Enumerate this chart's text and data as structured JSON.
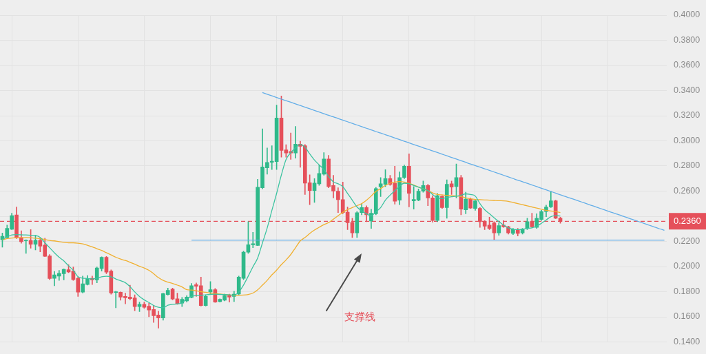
{
  "chart_data": {
    "type": "candlestick",
    "categories": [
      null,
      null,
      null,
      null,
      null,
      null,
      null,
      null,
      null,
      null,
      null,
      null,
      null,
      null,
      null,
      null,
      null,
      null,
      null,
      null,
      null,
      null,
      null,
      null,
      null,
      null,
      null,
      null,
      null,
      null,
      null,
      null,
      null,
      null,
      null,
      null,
      null,
      null,
      null,
      null,
      null,
      null,
      null,
      null,
      null,
      null,
      null,
      null,
      null,
      null,
      null,
      null,
      null,
      null,
      null,
      null,
      null,
      null,
      null,
      null,
      null,
      null,
      null,
      null,
      null,
      null,
      null,
      null,
      null,
      null,
      null,
      null,
      null,
      null,
      null,
      null,
      null,
      null,
      null,
      null,
      null,
      null,
      null,
      null,
      null,
      null,
      null,
      null,
      null,
      null,
      null,
      null,
      null,
      null,
      null,
      null,
      null,
      null,
      null,
      null,
      null,
      null,
      null,
      null,
      null,
      null,
      null,
      null,
      null,
      null,
      null,
      null,
      null,
      null,
      null,
      null,
      null,
      null,
      null,
      null,
      null,
      null,
      null,
      null,
      null,
      null,
      null,
      null,
      null,
      null,
      null,
      null,
      null,
      null,
      null,
      null,
      null,
      null,
      null,
      null,
      null
    ],
    "ohlc": [
      [
        0.2213,
        0.2267,
        0.2154,
        0.224
      ],
      [
        0.2231,
        0.233,
        0.2222,
        0.2303
      ],
      [
        0.2297,
        0.2424,
        0.2294,
        0.2405
      ],
      [
        0.2411,
        0.2474,
        0.2222,
        0.2231
      ],
      [
        0.2231,
        0.2285,
        0.2186,
        0.2198
      ],
      [
        0.2204,
        0.2213,
        0.2105,
        0.2209
      ],
      [
        0.2208,
        0.2294,
        0.2146,
        0.2177
      ],
      [
        0.2177,
        0.2249,
        0.2132,
        0.2209
      ],
      [
        0.2209,
        0.2225,
        0.2117,
        0.2162
      ],
      [
        0.2171,
        0.2225,
        0.2078,
        0.2081
      ],
      [
        0.2085,
        0.2096,
        0.1897,
        0.1905
      ],
      [
        0.1906,
        0.1961,
        0.1847,
        0.1934
      ],
      [
        0.1924,
        0.197,
        0.1889,
        0.1946
      ],
      [
        0.1943,
        0.1982,
        0.1894,
        0.1978
      ],
      [
        0.1975,
        0.2015,
        0.1951,
        0.1957
      ],
      [
        0.1964,
        0.1997,
        0.1889,
        0.1897
      ],
      [
        0.1906,
        0.1916,
        0.1762,
        0.1797
      ],
      [
        0.1797,
        0.1924,
        0.1789,
        0.1862
      ],
      [
        0.1856,
        0.1928,
        0.1852,
        0.1903
      ],
      [
        0.1906,
        0.1924,
        0.1856,
        0.1894
      ],
      [
        0.1894,
        0.1997,
        0.187,
        0.1988
      ],
      [
        0.1984,
        0.2078,
        0.1964,
        0.2074
      ],
      [
        0.2074,
        0.2081,
        0.1943,
        0.1955
      ],
      [
        0.1964,
        0.1973,
        0.178,
        0.1789
      ],
      [
        0.1793,
        0.1804,
        0.1672,
        0.18
      ],
      [
        0.1795,
        0.1798,
        0.1732,
        0.1757
      ],
      [
        0.1762,
        0.1789,
        0.1703,
        0.1751
      ],
      [
        0.1757,
        0.1852,
        0.1735,
        0.1744
      ],
      [
        0.175,
        0.1775,
        0.1649,
        0.1681
      ],
      [
        0.1681,
        0.1717,
        0.1642,
        0.1699
      ],
      [
        0.1699,
        0.1717,
        0.1667,
        0.1676
      ],
      [
        0.1685,
        0.1708,
        0.16,
        0.1654
      ],
      [
        0.1658,
        0.169,
        0.1555,
        0.1609
      ],
      [
        0.1615,
        0.1645,
        0.151,
        0.1591
      ],
      [
        0.1591,
        0.1789,
        0.1573,
        0.1784
      ],
      [
        0.1777,
        0.1829,
        0.1771,
        0.1811
      ],
      [
        0.182,
        0.1829,
        0.1735,
        0.1741
      ],
      [
        0.1744,
        0.1789,
        0.1699,
        0.1705
      ],
      [
        0.1708,
        0.1754,
        0.1681,
        0.1739
      ],
      [
        0.1726,
        0.1768,
        0.1717,
        0.1757
      ],
      [
        0.1754,
        0.1865,
        0.175,
        0.1847
      ],
      [
        0.1856,
        0.187,
        0.1762,
        0.1843
      ],
      [
        0.1847,
        0.1916,
        0.1685,
        0.169
      ],
      [
        0.169,
        0.1775,
        0.1685,
        0.1762
      ],
      [
        0.1798,
        0.188,
        0.1782,
        0.1816
      ],
      [
        0.1816,
        0.1825,
        0.1714,
        0.1717
      ],
      [
        0.1721,
        0.1744,
        0.1717,
        0.1739
      ],
      [
        0.1732,
        0.1781,
        0.1726,
        0.1771
      ],
      [
        0.1771,
        0.1781,
        0.1717,
        0.1757
      ],
      [
        0.1762,
        0.1804,
        0.1721,
        0.1781
      ],
      [
        0.1781,
        0.1924,
        0.1771,
        0.1916
      ],
      [
        0.1906,
        0.2123,
        0.1897,
        0.2114
      ],
      [
        0.2114,
        0.2357,
        0.2105,
        0.2173
      ],
      [
        0.2173,
        0.2272,
        0.215,
        0.2182
      ],
      [
        0.2168,
        0.2694,
        0.2166,
        0.2631
      ],
      [
        0.2627,
        0.3096,
        0.2618,
        0.2793
      ],
      [
        0.2786,
        0.2943,
        0.2735,
        0.2829
      ],
      [
        0.2829,
        0.2961,
        0.2771,
        0.2838
      ],
      [
        0.2835,
        0.3285,
        0.2771,
        0.3182
      ],
      [
        0.3182,
        0.3357,
        0.287,
        0.2924
      ],
      [
        0.2928,
        0.297,
        0.287,
        0.2903
      ],
      [
        0.2916,
        0.3063,
        0.2852,
        0.2903
      ],
      [
        0.2903,
        0.3114,
        0.2862,
        0.2973
      ],
      [
        0.2973,
        0.2997,
        0.2789,
        0.2957
      ],
      [
        0.2961,
        0.2971,
        0.2573,
        0.2664
      ],
      [
        0.2667,
        0.273,
        0.2492,
        0.2605
      ],
      [
        0.2605,
        0.2699,
        0.251,
        0.2664
      ],
      [
        0.2658,
        0.2808,
        0.2645,
        0.2741
      ],
      [
        0.2735,
        0.2906,
        0.2726,
        0.2856
      ],
      [
        0.2856,
        0.2884,
        0.2627,
        0.2636
      ],
      [
        0.2645,
        0.2726,
        0.2546,
        0.26
      ],
      [
        0.26,
        0.2627,
        0.2429,
        0.2532
      ],
      [
        0.2532,
        0.2672,
        0.242,
        0.2429
      ],
      [
        0.2432,
        0.2474,
        0.2294,
        0.2348
      ],
      [
        0.2351,
        0.2384,
        0.2231,
        0.2267
      ],
      [
        0.2267,
        0.2438,
        0.2231,
        0.2429
      ],
      [
        0.2429,
        0.2501,
        0.2411,
        0.247
      ],
      [
        0.247,
        0.2483,
        0.2357,
        0.2411
      ],
      [
        0.2362,
        0.2456,
        0.2303,
        0.2424
      ],
      [
        0.242,
        0.263,
        0.2411,
        0.262
      ],
      [
        0.2635,
        0.2708,
        0.2556,
        0.2659
      ],
      [
        0.2654,
        0.2771,
        0.2636,
        0.2699
      ],
      [
        0.2699,
        0.2726,
        0.2645,
        0.2654
      ],
      [
        0.2663,
        0.2798,
        0.2497,
        0.2519
      ],
      [
        0.2528,
        0.2753,
        0.2492,
        0.2708
      ],
      [
        0.2708,
        0.2808,
        0.2699,
        0.2798
      ],
      [
        0.2798,
        0.2897,
        0.2474,
        0.2582
      ],
      [
        0.2523,
        0.2636,
        0.2456,
        0.2534
      ],
      [
        0.2528,
        0.2618,
        0.2523,
        0.26
      ],
      [
        0.26,
        0.2681,
        0.2591,
        0.2645
      ],
      [
        0.2645,
        0.2654,
        0.2484,
        0.2546
      ],
      [
        0.2546,
        0.2564,
        0.2353,
        0.2366
      ],
      [
        0.2366,
        0.2582,
        0.2357,
        0.2564
      ],
      [
        0.2559,
        0.2564,
        0.2462,
        0.2469
      ],
      [
        0.2469,
        0.269,
        0.2384,
        0.2654
      ],
      [
        0.2659,
        0.2681,
        0.2573,
        0.2632
      ],
      [
        0.2636,
        0.2816,
        0.2546,
        0.2708
      ],
      [
        0.2708,
        0.2726,
        0.2411,
        0.2456
      ],
      [
        0.2451,
        0.2591,
        0.242,
        0.2537
      ],
      [
        0.2537,
        0.2546,
        0.2462,
        0.2465
      ],
      [
        0.2462,
        0.2528,
        0.2447,
        0.2523
      ],
      [
        0.2462,
        0.2469,
        0.2312,
        0.2357
      ],
      [
        0.236,
        0.2366,
        0.2294,
        0.2321
      ],
      [
        0.233,
        0.2393,
        0.2294,
        0.2303
      ],
      [
        0.2348,
        0.2357,
        0.2213,
        0.2267
      ],
      [
        0.2267,
        0.2348,
        0.2249,
        0.2326
      ],
      [
        0.233,
        0.2366,
        0.2312,
        0.2316
      ],
      [
        0.2317,
        0.2321,
        0.2258,
        0.2267
      ],
      [
        0.2263,
        0.2303,
        0.2254,
        0.2294
      ],
      [
        0.2294,
        0.2303,
        0.2243,
        0.2263
      ],
      [
        0.2267,
        0.2303,
        0.2258,
        0.2299
      ],
      [
        0.2303,
        0.2384,
        0.2294,
        0.2357
      ],
      [
        0.2357,
        0.2424,
        0.2312,
        0.2316
      ],
      [
        0.2312,
        0.242,
        0.2303,
        0.2384
      ],
      [
        0.2375,
        0.2447,
        0.2366,
        0.2438
      ],
      [
        0.2438,
        0.2489,
        0.2397,
        0.2474
      ],
      [
        0.2474,
        0.26,
        0.2469,
        0.2523
      ],
      [
        0.2523,
        0.2528,
        0.2381,
        0.2384
      ],
      [
        0.2384,
        0.2393,
        0.2344,
        0.236
      ],
      null,
      null,
      null,
      null,
      null,
      null,
      null,
      null,
      null,
      null,
      null,
      null,
      null,
      null,
      null,
      null,
      null,
      null,
      null,
      null,
      null,
      null
    ],
    "colors": [
      "#2fb98a",
      "#2fb98a",
      "#2fb98a",
      "#e5505a",
      "#e5505a",
      "#2fb98a",
      "#e5505a",
      "#2fb98a",
      "#e5505a",
      "#e5505a",
      "#e5505a",
      "#2fb98a",
      "#2fb98a",
      "#2fb98a",
      "#e5505a",
      "#e5505a",
      "#e5505a",
      "#2fb98a",
      "#2fb98a",
      "#e5505a",
      "#2fb98a",
      "#2fb98a",
      "#e5505a",
      "#e5505a",
      "#2fb98a",
      "#e5505a",
      "#e5505a",
      "#e5505a",
      "#e5505a",
      "#2fb98a",
      "#e5505a",
      "#e5505a",
      "#e5505a",
      "#e5505a",
      "#2fb98a",
      "#2fb98a",
      "#e5505a",
      "#e5505a",
      "#2fb98a",
      "#2fb98a",
      "#2fb98a",
      "#e5505a",
      "#e5505a",
      "#2fb98a",
      "#2fb98a",
      "#e5505a",
      "#2fb98a",
      "#2fb98a",
      "#e5505a",
      "#2fb98a",
      "#2fb98a",
      "#2fb98a",
      "#2fb98a",
      "#2fb98a",
      "#2fb98a",
      "#2fb98a",
      "#2fb98a",
      "#2fb98a",
      "#2fb98a",
      "#e5505a",
      "#e5505a",
      "#e5505a",
      "#2fb98a",
      "#e5505a",
      "#e5505a",
      "#e5505a",
      "#2fb98a",
      "#2fb98a",
      "#2fb98a",
      "#e5505a",
      "#e5505a",
      "#e5505a",
      "#e5505a",
      "#e5505a",
      "#e5505a",
      "#2fb98a",
      "#2fb98a",
      "#e5505a",
      "#2fb98a",
      "#2fb98a",
      "#2fb98a",
      "#2fb98a",
      "#e5505a",
      "#e5505a",
      "#2fb98a",
      "#2fb98a",
      "#e5505a",
      "#2fb98a",
      "#2fb98a",
      "#2fb98a",
      "#e5505a",
      "#e5505a",
      "#2fb98a",
      "#e5505a",
      "#2fb98a",
      "#e5505a",
      "#2fb98a",
      "#e5505a",
      "#2fb98a",
      "#e5505a",
      "#2fb98a",
      "#e5505a",
      "#e5505a",
      "#e5505a",
      "#e5505a",
      "#2fb98a",
      "#e5505a",
      "#e5505a",
      "#2fb98a",
      "#e5505a",
      "#2fb98a",
      "#2fb98a",
      "#e5505a",
      "#2fb98a",
      "#2fb98a",
      "#2fb98a",
      "#2fb98a",
      "#e5505a",
      "#e5505a",
      null,
      null,
      null,
      null,
      null,
      null,
      null,
      null,
      null,
      null,
      null,
      null,
      null,
      null,
      null,
      null,
      null,
      null,
      null,
      null,
      null,
      null
    ],
    "series": [
      {
        "type": "line",
        "color": "#3cc3a0",
        "values": [
          0.2216,
          0.2236,
          0.2251,
          0.2254,
          0.2252,
          0.2251,
          0.2249,
          0.2247,
          0.2231,
          0.2189,
          0.215,
          0.211,
          0.2074,
          0.2045,
          0.2006,
          0.197,
          0.1919,
          0.1908,
          0.1905,
          0.1901,
          0.1908,
          0.1919,
          0.1923,
          0.1919,
          0.1901,
          0.1887,
          0.1872,
          0.184,
          0.1798,
          0.1762,
          0.1735,
          0.1714,
          0.169,
          0.1676,
          0.1672,
          0.1692,
          0.1699,
          0.1703,
          0.171,
          0.1745,
          0.1762,
          0.1769,
          0.1771,
          0.1775,
          0.1778,
          0.178,
          0.1778,
          0.1777,
          0.1775,
          0.1771,
          0.1798,
          0.1853,
          0.1924,
          0.1999,
          0.2069,
          0.2188,
          0.2306,
          0.2447,
          0.2582,
          0.2728,
          0.2852,
          0.2906,
          0.2944,
          0.2971,
          0.295,
          0.2896,
          0.2847,
          0.2809,
          0.2771,
          0.2717,
          0.2674,
          0.2658,
          0.2636,
          0.2582,
          0.2528,
          0.2474,
          0.2442,
          0.242,
          0.2404,
          0.2436,
          0.2469,
          0.2528,
          0.2568,
          0.2604,
          0.264,
          0.2663,
          0.2658,
          0.2645,
          0.2632,
          0.2618,
          0.2604,
          0.2573,
          0.2546,
          0.2541,
          0.255,
          0.2555,
          0.2559,
          0.2568,
          0.2578,
          0.2573,
          0.2561,
          0.2501,
          0.2452,
          0.242,
          0.2388,
          0.2357,
          0.233,
          0.2308,
          0.2297,
          0.2294,
          0.2297,
          0.2303,
          0.2308,
          0.2321,
          0.2344,
          0.237,
          0.2397,
          0.2405,
          0.2402,
          null,
          null,
          null,
          null,
          null,
          null,
          null,
          null,
          null,
          null,
          null,
          null,
          null,
          null,
          null,
          null,
          null,
          null,
          null,
          null,
          null,
          null
        ]
      },
      {
        "type": "line",
        "color": "#f0b030",
        "values": [
          0.2213,
          0.2222,
          0.2227,
          0.2229,
          0.2229,
          0.2231,
          0.2229,
          0.2225,
          0.2222,
          0.2215,
          0.2207,
          0.2204,
          0.2198,
          0.2193,
          0.2189,
          0.2189,
          0.2186,
          0.218,
          0.2169,
          0.2157,
          0.2142,
          0.2128,
          0.211,
          0.2092,
          0.2074,
          0.2059,
          0.2048,
          0.2034,
          0.2018,
          0.2002,
          0.1988,
          0.197,
          0.1943,
          0.1912,
          0.189,
          0.1876,
          0.1865,
          0.1852,
          0.1838,
          0.1816,
          0.1813,
          0.1808,
          0.18,
          0.1795,
          0.1789,
          0.1786,
          0.1782,
          0.1778,
          0.1775,
          0.1771,
          0.1771,
          0.1773,
          0.1778,
          0.1789,
          0.1815,
          0.1852,
          0.189,
          0.1934,
          0.1971,
          0.2015,
          0.2053,
          0.2096,
          0.215,
          0.2204,
          0.2231,
          0.2263,
          0.229,
          0.2312,
          0.2334,
          0.235,
          0.2377,
          0.2404,
          0.2431,
          0.2453,
          0.2469,
          0.2485,
          0.2501,
          0.2528,
          0.2561,
          0.2598,
          0.262,
          0.2645,
          0.2663,
          0.2672,
          0.2676,
          0.2672,
          0.2662,
          0.2649,
          0.2632,
          0.2618,
          0.2604,
          0.2586,
          0.2573,
          0.257,
          0.2566,
          0.2564,
          0.2562,
          0.2557,
          0.2546,
          0.2539,
          0.2534,
          0.2532,
          0.253,
          0.2528,
          0.2526,
          0.2524,
          0.2523,
          0.2519,
          0.251,
          0.2501,
          0.2492,
          0.2483,
          0.2474,
          0.2465,
          0.2456,
          0.2447,
          0.2442,
          0.2438,
          0.2429,
          null,
          null,
          null,
          null,
          null,
          null,
          null,
          null,
          null,
          null,
          null,
          null,
          null,
          null,
          null,
          null,
          null,
          null,
          null,
          null,
          null,
          null
        ]
      },
      {
        "type": "line",
        "color": "#63aee8",
        "values": [
          null,
          null,
          null,
          null,
          null,
          null,
          null,
          null,
          null,
          null,
          null,
          null,
          null,
          null,
          null,
          null,
          null,
          null,
          null,
          null,
          null,
          null,
          null,
          null,
          null,
          null,
          null,
          null,
          null,
          null,
          null,
          null,
          null,
          null,
          null,
          null,
          null,
          null,
          null,
          null,
          null,
          null,
          null,
          null,
          null,
          null,
          null,
          null,
          null,
          null,
          null,
          null,
          null,
          null,
          null,
          0.3384,
          0.3371,
          0.3358,
          0.3345,
          0.3332,
          0.332,
          0.3307,
          0.3294,
          0.3281,
          0.3268,
          0.3255,
          0.3242,
          0.3229,
          0.3216,
          0.3203,
          0.3191,
          0.3178,
          0.3165,
          0.3152,
          0.3139,
          0.3126,
          0.3113,
          0.31,
          0.3087,
          0.3074,
          0.3062,
          0.3049,
          0.3036,
          0.3023,
          0.301,
          0.2997,
          0.2984,
          0.2971,
          0.2958,
          0.2945,
          0.2933,
          0.292,
          0.2907,
          0.2894,
          0.2881,
          0.2868,
          0.2855,
          0.2842,
          0.2829,
          0.2816,
          0.2804,
          0.2791,
          0.2778,
          0.2765,
          0.2752,
          0.2739,
          0.2726,
          0.2713,
          0.27,
          0.2687,
          0.2675,
          0.2662,
          0.2649,
          0.2636,
          0.2623,
          0.261,
          0.2597,
          0.2584,
          0.2571,
          0.2558,
          0.2546,
          0.2533,
          0.252,
          0.2507,
          0.2494,
          0.2481,
          0.2468,
          0.2455,
          0.2442,
          0.2429,
          0.2417,
          0.2404,
          0.2391,
          0.2378,
          0.2365,
          0.2352,
          0.2339,
          0.2326,
          0.2313,
          0.23,
          0.2288
        ]
      },
      {
        "type": "line",
        "color": "#63aee8",
        "values": [
          null,
          null,
          null,
          null,
          null,
          null,
          null,
          null,
          null,
          null,
          null,
          null,
          null,
          null,
          null,
          null,
          null,
          null,
          null,
          null,
          null,
          null,
          null,
          null,
          null,
          null,
          null,
          null,
          null,
          null,
          null,
          null,
          null,
          null,
          null,
          null,
          null,
          null,
          null,
          null,
          0.221,
          0.221,
          0.221,
          0.221,
          0.221,
          0.221,
          0.221,
          0.221,
          0.221,
          0.221,
          0.221,
          0.221,
          0.221,
          0.221,
          0.221,
          0.221,
          0.221,
          0.221,
          0.221,
          0.221,
          0.221,
          0.221,
          0.221,
          0.221,
          0.221,
          0.221,
          0.221,
          0.221,
          0.221,
          0.221,
          0.221,
          0.221,
          0.221,
          0.221,
          0.221,
          0.221,
          0.221,
          0.221,
          0.221,
          0.221,
          0.221,
          0.221,
          0.221,
          0.221,
          0.221,
          0.221,
          0.221,
          0.221,
          0.221,
          0.221,
          0.221,
          0.221,
          0.221,
          0.221,
          0.221,
          0.221,
          0.221,
          0.221,
          0.221,
          0.221,
          0.221,
          0.221,
          0.221,
          0.221,
          0.221,
          0.221,
          0.221,
          0.221,
          0.221,
          0.221,
          0.221,
          0.221,
          0.221,
          0.221,
          0.221,
          0.221,
          0.221,
          0.221,
          0.221,
          0.221,
          0.221,
          0.221,
          0.221,
          0.221,
          0.221,
          0.221,
          0.221,
          0.221,
          0.221,
          0.221,
          0.221,
          0.221,
          0.221,
          0.221,
          0.221,
          0.221,
          0.221,
          0.221,
          0.221,
          0.221,
          0.221
        ]
      }
    ],
    "ylim": [
      0.14,
      0.4
    ],
    "yticks": [
      {
        "value": 0.14,
        "label": "0.1400"
      },
      {
        "value": 0.16,
        "label": "0.1600"
      },
      {
        "value": 0.18,
        "label": "0.1800"
      },
      {
        "value": 0.2,
        "label": "0.2000"
      },
      {
        "value": 0.22,
        "label": "0.2200"
      },
      {
        "value": 0.24,
        "label": null
      },
      {
        "value": 0.26,
        "label": "0.2600"
      },
      {
        "value": 0.28,
        "label": "0.2800"
      },
      {
        "value": 0.3,
        "label": "0.3000"
      },
      {
        "value": 0.32,
        "label": "0.3200"
      },
      {
        "value": 0.34,
        "label": "0.3400"
      },
      {
        "value": 0.36,
        "label": "0.3600"
      },
      {
        "value": 0.38,
        "label": "0.3800"
      },
      {
        "value": 0.4,
        "label": "0.4000"
      }
    ],
    "ref_lines": [
      {
        "axis": "y",
        "value": 0.236,
        "label": "0.2360",
        "color": "#e5505a",
        "line_style": "dashed"
      }
    ],
    "annotations": [
      "支撑线"
    ],
    "grid": true,
    "tick_labels": "y"
  }
}
